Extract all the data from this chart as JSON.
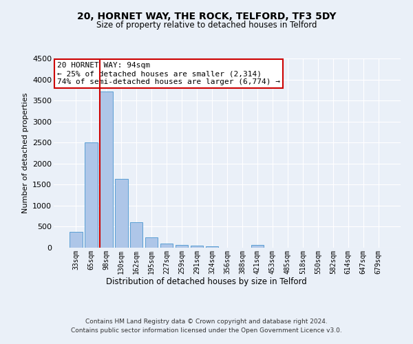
{
  "title1": "20, HORNET WAY, THE ROCK, TELFORD, TF3 5DY",
  "title2": "Size of property relative to detached houses in Telford",
  "xlabel": "Distribution of detached houses by size in Telford",
  "ylabel": "Number of detached properties",
  "categories": [
    "33sqm",
    "65sqm",
    "98sqm",
    "130sqm",
    "162sqm",
    "195sqm",
    "227sqm",
    "259sqm",
    "291sqm",
    "324sqm",
    "356sqm",
    "388sqm",
    "421sqm",
    "453sqm",
    "485sqm",
    "518sqm",
    "550sqm",
    "582sqm",
    "614sqm",
    "647sqm",
    "679sqm"
  ],
  "values": [
    380,
    2500,
    3720,
    1640,
    600,
    240,
    100,
    60,
    45,
    40,
    0,
    0,
    60,
    0,
    0,
    0,
    0,
    0,
    0,
    0,
    0
  ],
  "bar_color": "#aec6e8",
  "bar_edge_color": "#5a9fd4",
  "property_bar_index": 2,
  "red_line_color": "#cc0000",
  "annotation_text": "20 HORNET WAY: 94sqm\n← 25% of detached houses are smaller (2,314)\n74% of semi-detached houses are larger (6,774) →",
  "annotation_box_color": "#ffffff",
  "annotation_box_edge": "#cc0000",
  "ylim": [
    0,
    4500
  ],
  "yticks": [
    0,
    500,
    1000,
    1500,
    2000,
    2500,
    3000,
    3500,
    4000,
    4500
  ],
  "footer_line1": "Contains HM Land Registry data © Crown copyright and database right 2024.",
  "footer_line2": "Contains public sector information licensed under the Open Government Licence v3.0.",
  "bg_color": "#eaf0f8",
  "plot_bg_color": "#eaf0f8",
  "grid_color": "#ffffff"
}
